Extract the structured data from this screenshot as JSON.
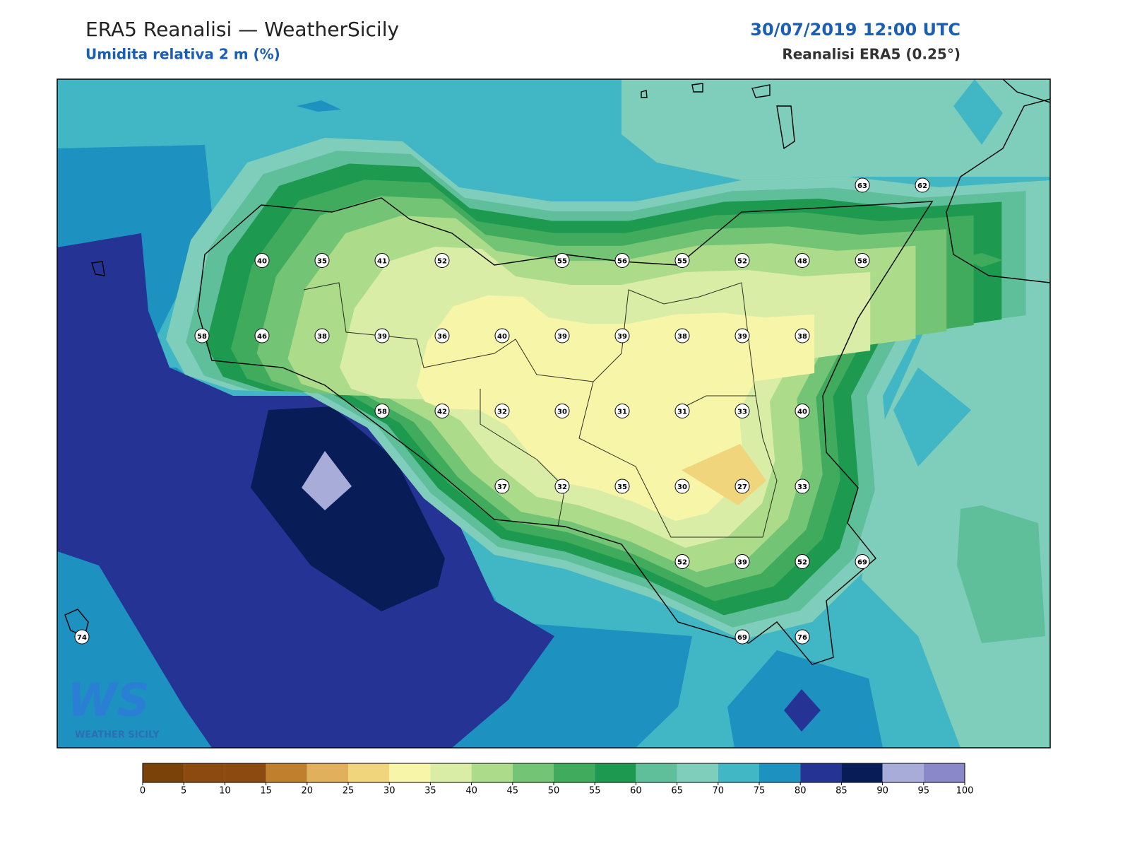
{
  "header": {
    "title": "ERA5 Reanalisi — WeatherSicily",
    "subtitle": "Umidita relativa 2 m (%)",
    "datetime": "30/07/2019 12:00 UTC",
    "source": "Reanalisi ERA5 (0.25°)"
  },
  "logo": {
    "text": "WS",
    "subtext": "WEATHER SICILY"
  },
  "station_grid": [
    [
      null,
      null,
      null,
      null,
      null,
      null,
      null,
      null,
      null,
      null,
      null,
      null,
      null,
      63,
      62
    ],
    [
      null,
      null,
      null,
      40,
      35,
      41,
      52,
      null,
      55,
      56,
      55,
      52,
      48,
      58,
      null
    ],
    [
      null,
      null,
      58,
      46,
      38,
      39,
      36,
      40,
      39,
      39,
      38,
      39,
      38,
      null,
      null
    ],
    [
      null,
      null,
      null,
      null,
      null,
      58,
      42,
      32,
      30,
      31,
      31,
      33,
      40,
      null,
      null
    ],
    [
      null,
      null,
      null,
      null,
      null,
      null,
      null,
      37,
      32,
      35,
      30,
      27,
      33,
      null,
      null
    ],
    [
      null,
      null,
      null,
      null,
      null,
      null,
      null,
      null,
      null,
      null,
      52,
      39,
      52,
      69,
      null
    ],
    [
      74,
      null,
      null,
      null,
      null,
      null,
      null,
      null,
      null,
      null,
      null,
      69,
      76,
      null,
      null
    ]
  ],
  "colorbar": {
    "levels": [
      0,
      5,
      10,
      15,
      20,
      25,
      30,
      35,
      40,
      45,
      50,
      55,
      60,
      65,
      70,
      75,
      80,
      85,
      90,
      95,
      100
    ],
    "colors": [
      "#7a4209",
      "#8c4a0f",
      "#8c4a0f",
      "#c07f2c",
      "#e0b05c",
      "#f0d57d",
      "#f6f5a8",
      "#d9eda6",
      "#acdc8a",
      "#74c476",
      "#41ab5d",
      "#1d9a50",
      "#5fbf9b",
      "#7fcdbb",
      "#41b6c4",
      "#1d91c0",
      "#253494",
      "#081d58",
      "#a8acd8",
      "#8a88c8"
    ]
  }
}
